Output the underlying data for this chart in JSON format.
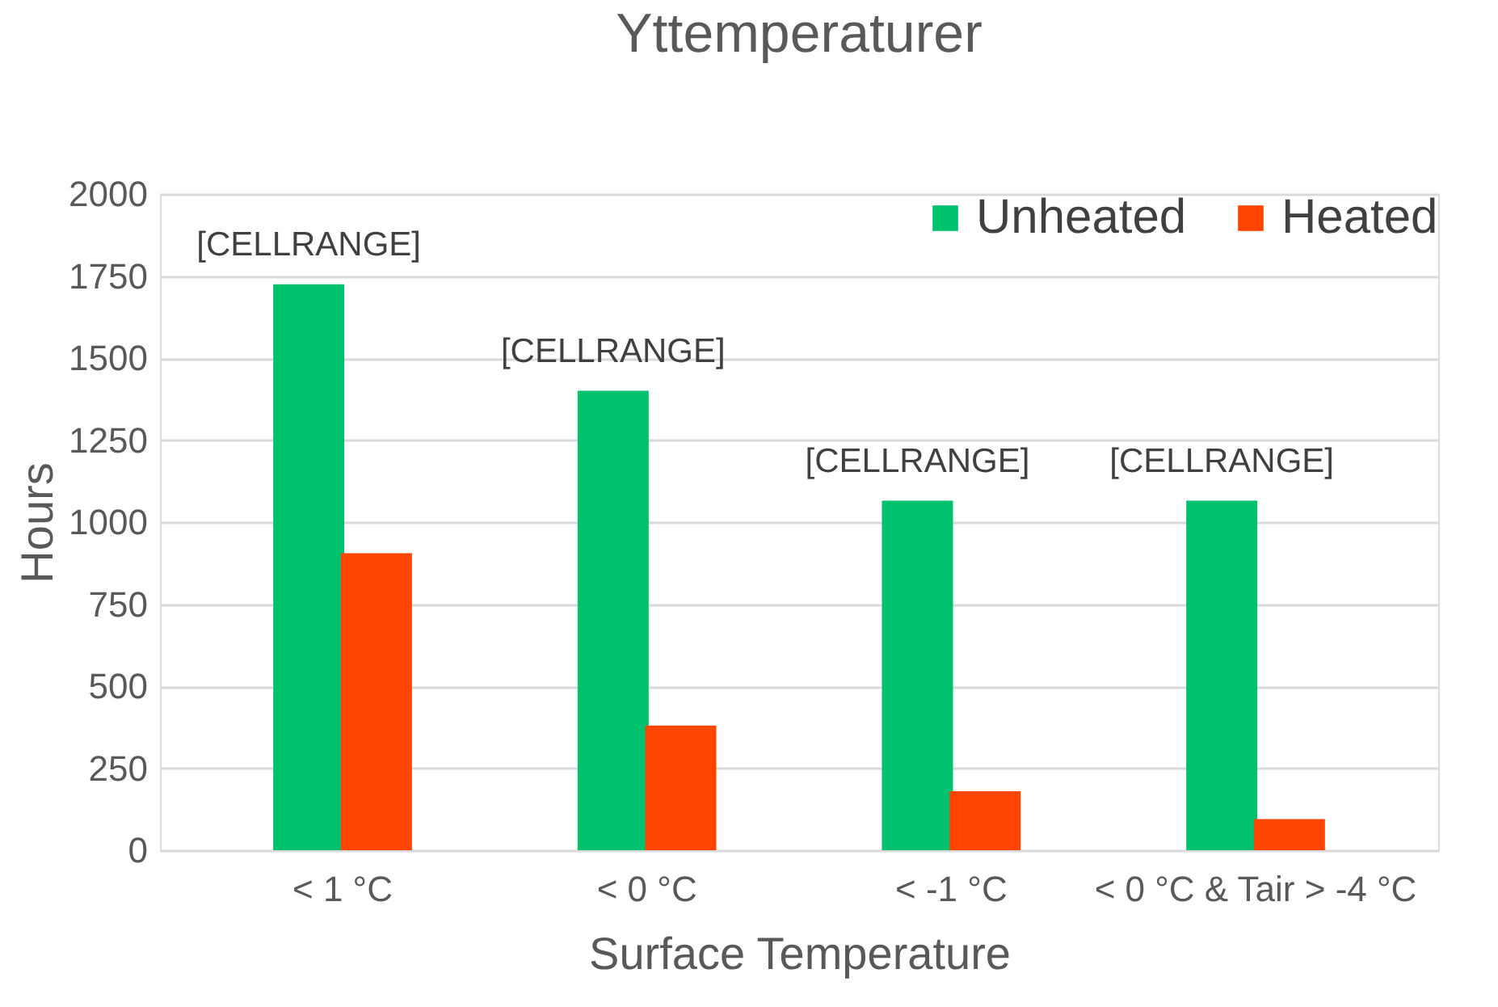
{
  "chart_data": {
    "type": "bar",
    "title": "Yttemperaturer",
    "xlabel": "Surface Temperature",
    "ylabel": "Hours",
    "categories": [
      "< 1 °C",
      "< 0 °C",
      "< -1 °C",
      "< 0 °C & Tair > -4 °C"
    ],
    "series": [
      {
        "name": "Unheated",
        "color": "#00c16e",
        "values": [
          1725,
          1400,
          1065,
          1065
        ],
        "value_labels": [
          "[CELLRANGE]",
          "[CELLRANGE]",
          "[CELLRANGE]",
          "[CELLRANGE]"
        ]
      },
      {
        "name": "Heated",
        "color": "#ff4500",
        "values": [
          905,
          380,
          180,
          95
        ]
      }
    ],
    "ylim": [
      0,
      2000
    ],
    "yticks": [
      0,
      250,
      500,
      750,
      1000,
      1250,
      1500,
      1750,
      2000
    ],
    "grid": "y",
    "legend": "top right"
  }
}
